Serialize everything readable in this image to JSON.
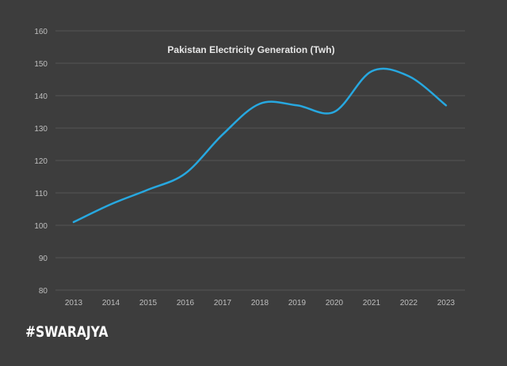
{
  "brand": {
    "text": "#SWARAJYA"
  },
  "colors": {
    "background": "#3d3d3d",
    "line": "#27a8e0",
    "grid": "#555555",
    "text": "#bfbfbf",
    "title": "#e6e6e6"
  },
  "chart_data": {
    "type": "line",
    "title": "Pakistan Electricity Generation (Twh)",
    "xlabel": "",
    "ylabel": "",
    "categories": [
      "2013",
      "2014",
      "2015",
      "2016",
      "2017",
      "2018",
      "2019",
      "2020",
      "2021",
      "2022",
      "2023"
    ],
    "series": [
      {
        "values": [
          101,
          106.5,
          111,
          116,
          128,
          137.5,
          137,
          135,
          147.5,
          146,
          137
        ]
      }
    ],
    "ylim": [
      80,
      160
    ],
    "yticks": [
      80,
      90,
      100,
      110,
      120,
      130,
      140,
      150,
      160
    ],
    "grid": true,
    "legend": "none",
    "smooth": true
  }
}
